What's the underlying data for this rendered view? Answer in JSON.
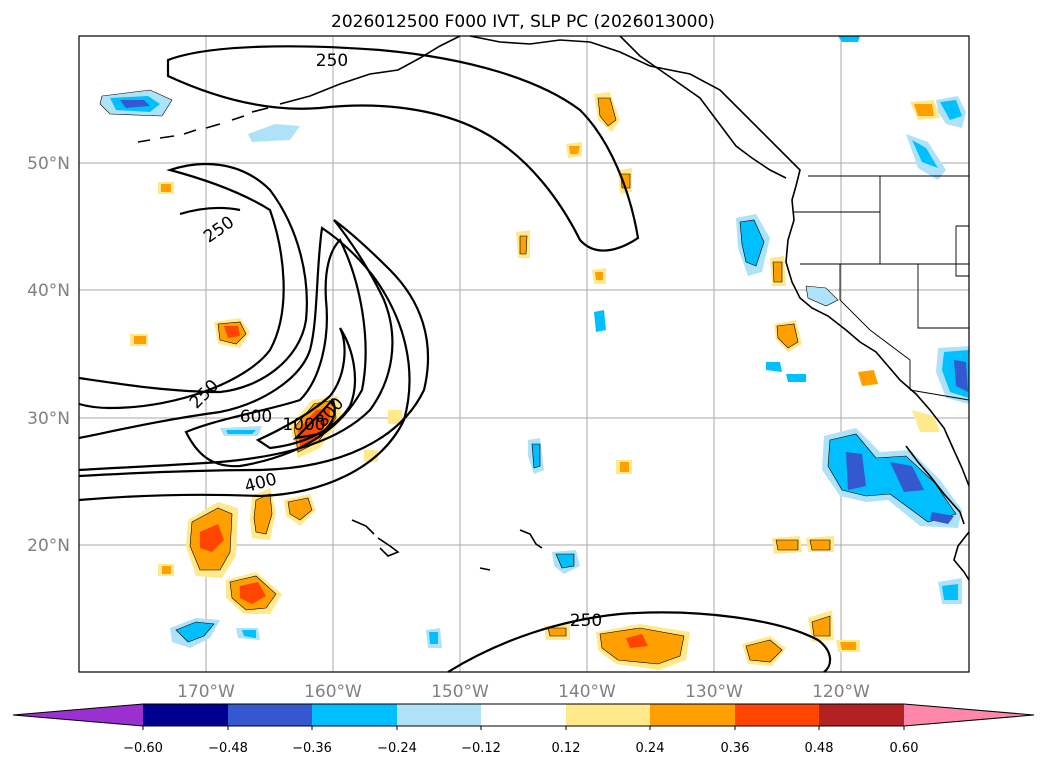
{
  "title": "2026012500 F000 IVT, SLP PC (2026013000)",
  "map": {
    "lat_labels": [
      "50°N",
      "40°N",
      "30°N",
      "20°N"
    ],
    "lon_labels": [
      "170°W",
      "160°W",
      "150°W",
      "140°W",
      "130°W",
      "120°W"
    ],
    "contour_labels": [
      "250",
      "250",
      "250",
      "600",
      "1000",
      "800",
      "400",
      "250"
    ]
  },
  "colorbar": {
    "ticks": [
      "−0.60",
      "−0.48",
      "−0.36",
      "−0.24",
      "−0.12",
      "0.12",
      "0.24",
      "0.36",
      "0.48",
      "0.60"
    ],
    "colors": [
      "#9b30d0",
      "#000090",
      "#3458d0",
      "#00bfff",
      "#aee2f8",
      "#ffffff",
      "#ffe98a",
      "#ffa000",
      "#ff4500",
      "#b22222",
      "#ff88aa"
    ]
  },
  "colors": {
    "neg_fill_light": "#aee2f8",
    "neg_fill_mid": "#00bfff",
    "neg_fill_dark": "#3458d0",
    "pos_fill_light": "#ffe98a",
    "pos_fill_mid": "#ffa000",
    "pos_fill_dark": "#ff4500",
    "grid": "#a9a9a9",
    "land_lines": "#000000"
  }
}
